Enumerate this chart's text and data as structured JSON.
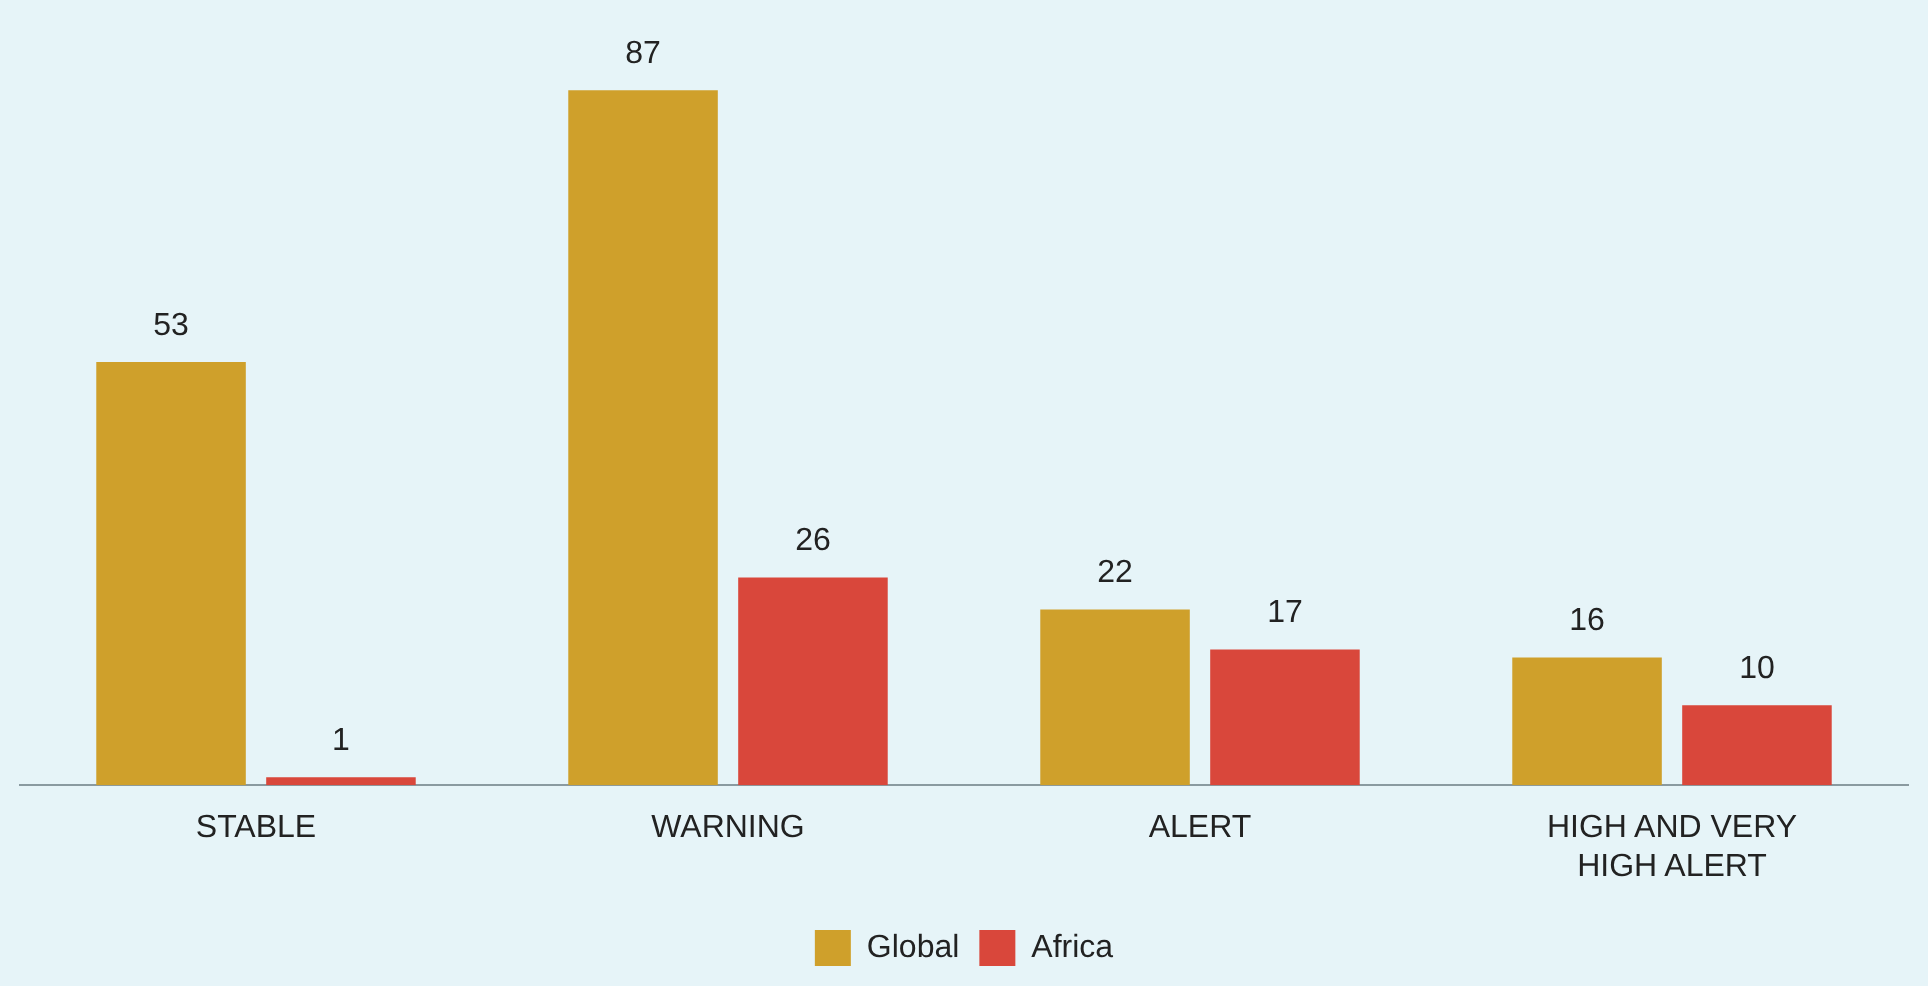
{
  "chart_data": {
    "type": "bar",
    "categories": [
      "STABLE",
      "WARNING",
      "ALERT",
      "HIGH AND VERY HIGH ALERT"
    ],
    "series": [
      {
        "name": "Global",
        "color": "#cfa02b",
        "values": [
          53,
          87,
          22,
          16
        ]
      },
      {
        "name": "Africa",
        "color": "#d9473b",
        "values": [
          1,
          26,
          17,
          10
        ]
      }
    ],
    "data_labels": true,
    "legend": "bottom",
    "grid": false
  }
}
